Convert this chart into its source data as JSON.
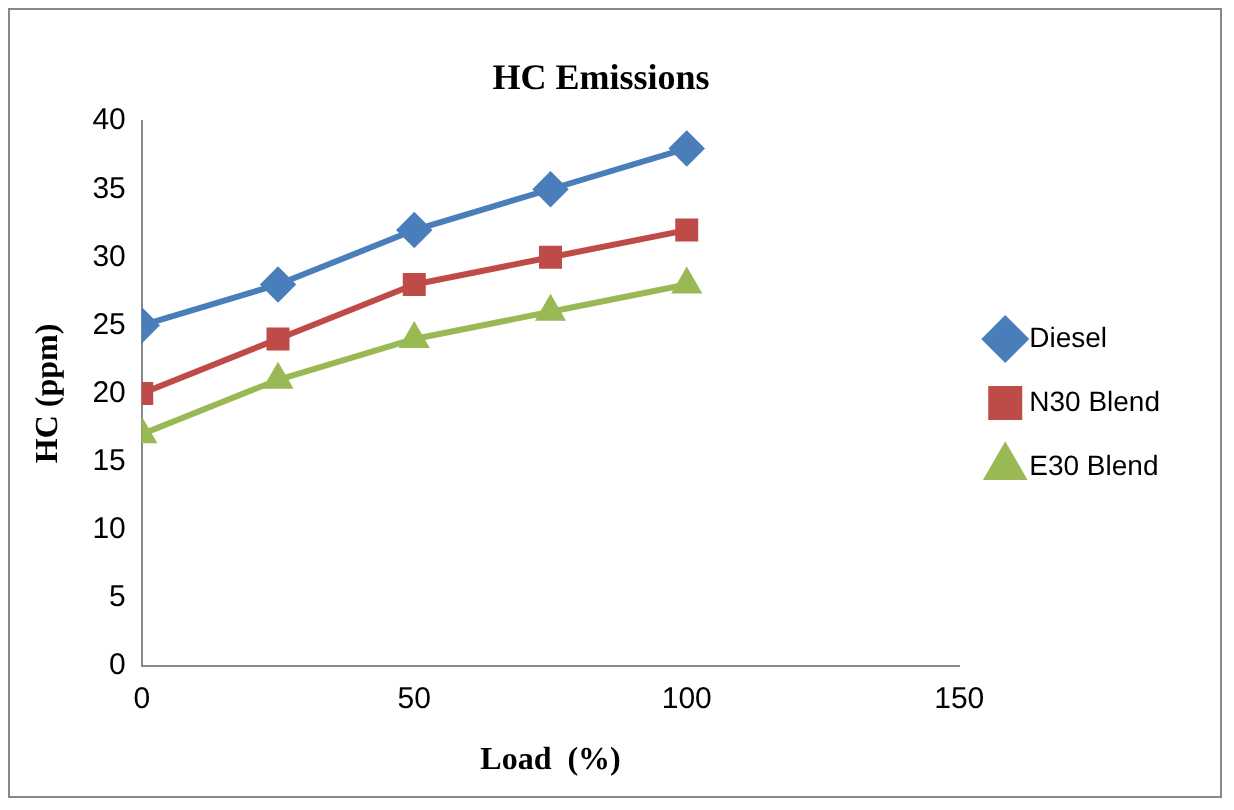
{
  "chart_data": {
    "type": "line",
    "title": "HC Emissions",
    "xlabel": "Load  (%)",
    "ylabel": "HC (ppm)",
    "x": [
      0,
      25,
      50,
      75,
      100
    ],
    "xlim": [
      0,
      150
    ],
    "xticks": [
      0,
      50,
      100,
      150
    ],
    "ylim": [
      0,
      40
    ],
    "yticks": [
      0,
      5,
      10,
      15,
      20,
      25,
      30,
      35,
      40
    ],
    "grid": false,
    "legend": "right",
    "line_style": "solid",
    "series": [
      {
        "name": "Diesel",
        "color": "#4a7ebb",
        "marker": "diamond",
        "values": [
          25,
          28,
          32,
          35,
          38
        ]
      },
      {
        "name": "N30 Blend",
        "color": "#be4b48",
        "marker": "square",
        "values": [
          20,
          24,
          28,
          30,
          32
        ]
      },
      {
        "name": "E30 Blend",
        "color": "#98b954",
        "marker": "triangle",
        "values": [
          17,
          21,
          24,
          26,
          28
        ]
      }
    ]
  }
}
